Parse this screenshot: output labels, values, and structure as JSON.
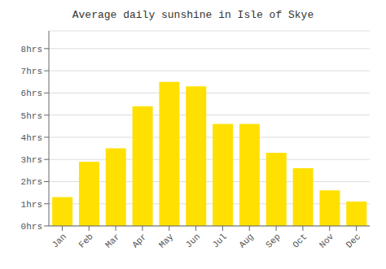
{
  "chart_data": {
    "type": "bar",
    "title": "Average daily sunshine in Isle of Skye",
    "categories": [
      "Jan",
      "Feb",
      "Mar",
      "Apr",
      "May",
      "Jun",
      "Jul",
      "Aug",
      "Sep",
      "Oct",
      "Nov",
      "Dec"
    ],
    "values": [
      1.3,
      2.9,
      3.5,
      5.4,
      6.5,
      6.3,
      4.6,
      4.6,
      3.3,
      2.6,
      1.6,
      1.1
    ],
    "color": "#FFE000",
    "ylim": [
      0,
      8.8
    ],
    "yticks": [
      {
        "value": 0,
        "label": "0hrs"
      },
      {
        "value": 1,
        "label": "1hrs"
      },
      {
        "value": 2,
        "label": "2hrs"
      },
      {
        "value": 3,
        "label": "3hrs"
      },
      {
        "value": 4,
        "label": "4hrs"
      },
      {
        "value": 5,
        "label": "5hrs"
      },
      {
        "value": 6,
        "label": "6hrs"
      },
      {
        "value": 7,
        "label": "7hrs"
      },
      {
        "value": 8,
        "label": "8hrs"
      }
    ],
    "grid": true
  }
}
